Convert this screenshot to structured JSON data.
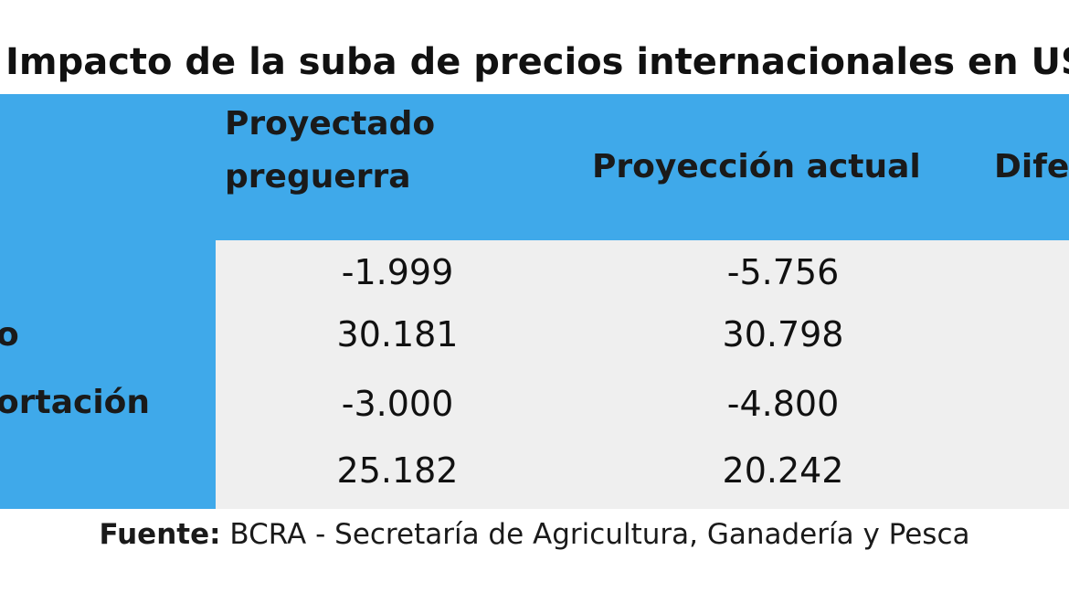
{
  "title": "Impacto de la suba de precios internacionales en US$",
  "header": {
    "col1_line1": "Proyectado",
    "col1_line2": "preguerra",
    "col2": "Proyección actual",
    "col3": "Dife"
  },
  "rows": [
    {
      "label": "",
      "pre": "-1.999",
      "actual": "-5.756"
    },
    {
      "label": "o",
      "pre": "30.181",
      "actual": "30.798"
    },
    {
      "label": "ortación",
      "pre": "-3.000",
      "actual": "-4.800"
    },
    {
      "label": "",
      "pre": "25.182",
      "actual": "20.242"
    }
  ],
  "source": {
    "prefix": "Fuente:",
    "text": " BCRA - Secretaría de Agricultura, Ganadería y Pesca"
  },
  "colors": {
    "header_blue": "#3fa9ea",
    "body_grey": "#efefef"
  }
}
